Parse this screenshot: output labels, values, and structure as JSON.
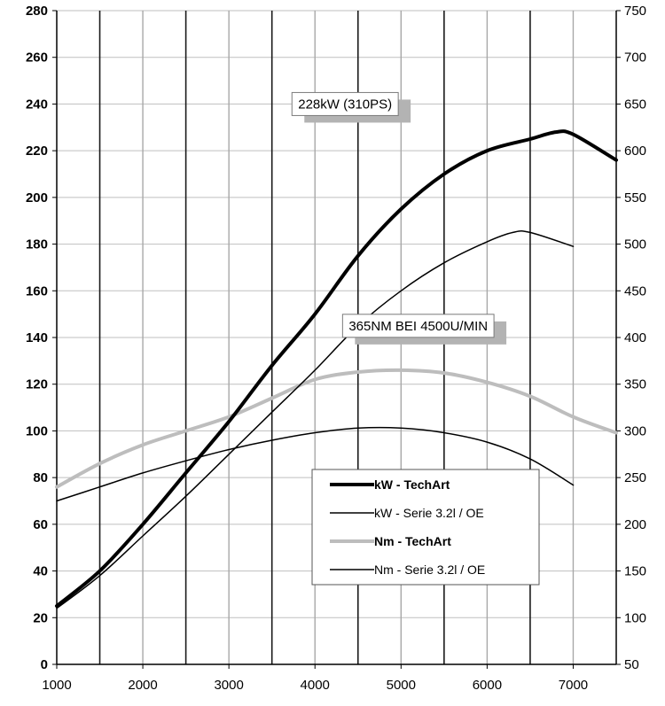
{
  "chart_data": {
    "type": "line",
    "x_ticks": [
      1000,
      2000,
      3000,
      4000,
      5000,
      6000,
      7000
    ],
    "xlim": [
      1000,
      7500
    ],
    "ylim_left": [
      0,
      280
    ],
    "y_ticks_left": [
      0,
      20,
      40,
      60,
      80,
      100,
      120,
      140,
      160,
      180,
      200,
      220,
      240,
      260,
      280
    ],
    "ylim_right": [
      50,
      750
    ],
    "y_ticks_right": [
      50,
      100,
      150,
      200,
      250,
      300,
      350,
      400,
      450,
      500,
      550,
      600,
      650,
      700,
      750
    ],
    "grid": true,
    "annotations": [
      {
        "text": "228kW (310PS)",
        "rpm": 4350,
        "axis_value": 240
      },
      {
        "text": "365NM BEI 4500U/MIN",
        "rpm": 5200,
        "axis_value": 145
      }
    ],
    "legend": {
      "position": "bottom-right",
      "entries": [
        {
          "label": "kW - TechArt",
          "bold": true
        },
        {
          "label": "kW - Serie 3.2l / OE",
          "bold": false
        },
        {
          "label": "Nm - TechArt",
          "bold": true
        },
        {
          "label": "Nm - Serie 3.2l / OE",
          "bold": false
        }
      ]
    },
    "series": [
      {
        "name": "kW - TechArt",
        "axis": "left",
        "color": "#000000",
        "width": 4,
        "x": [
          1000,
          1500,
          2000,
          2500,
          3000,
          3500,
          4000,
          4500,
          5000,
          5500,
          6000,
          6500,
          6800,
          7000,
          7500
        ],
        "y": [
          25,
          40,
          60,
          82,
          104,
          128,
          150,
          175,
          195,
          210,
          220,
          225,
          228,
          227,
          216
        ]
      },
      {
        "name": "kW - Serie 3.2l / OE",
        "axis": "left",
        "color": "#000000",
        "width": 1.5,
        "x": [
          1000,
          1500,
          2000,
          2500,
          3000,
          3500,
          4000,
          4500,
          5000,
          5500,
          6000,
          6300,
          6500,
          7000
        ],
        "y": [
          24,
          38,
          55,
          72,
          90,
          108,
          126,
          145,
          160,
          172,
          181,
          185,
          185,
          179
        ]
      },
      {
        "name": "Nm - TechArt",
        "axis": "right",
        "color": "#bdbdbd",
        "width": 4,
        "x": [
          1000,
          1500,
          2000,
          2500,
          3000,
          3500,
          4000,
          4500,
          5000,
          5500,
          6000,
          6500,
          7000,
          7500
        ],
        "y": [
          240,
          265,
          285,
          300,
          315,
          335,
          355,
          363,
          365,
          362,
          352,
          337,
          315,
          298
        ]
      },
      {
        "name": "Nm - Serie 3.2l / OE",
        "axis": "right",
        "color": "#000000",
        "width": 1.5,
        "x": [
          1000,
          1500,
          2000,
          2500,
          3000,
          3500,
          4000,
          4500,
          5000,
          5500,
          6000,
          6500,
          7000
        ],
        "y": [
          225,
          240,
          255,
          268,
          280,
          290,
          298,
          303,
          303,
          298,
          288,
          270,
          242
        ]
      }
    ]
  }
}
